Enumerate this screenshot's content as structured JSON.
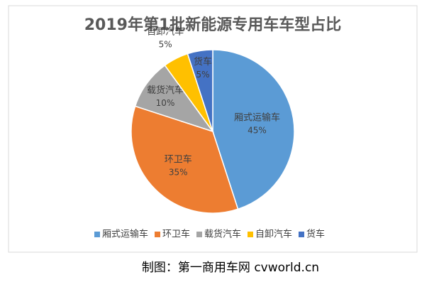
{
  "chart_data": {
    "type": "pie",
    "title": "2019年第1批新能源专用车车型占比",
    "categories": [
      "厢式运输车",
      "环卫车",
      "载货汽车",
      "自卸汽车",
      "货车"
    ],
    "values": [
      45,
      35,
      10,
      5,
      5
    ],
    "value_labels": [
      "45%",
      "35%",
      "10%",
      "5%",
      "5%"
    ],
    "colors": [
      "#5b9bd5",
      "#ed7d31",
      "#a5a5a5",
      "#ffc000",
      "#4472c4"
    ],
    "legend": "bottom"
  },
  "source": "制图：第一商用车网 cvworld.cn"
}
